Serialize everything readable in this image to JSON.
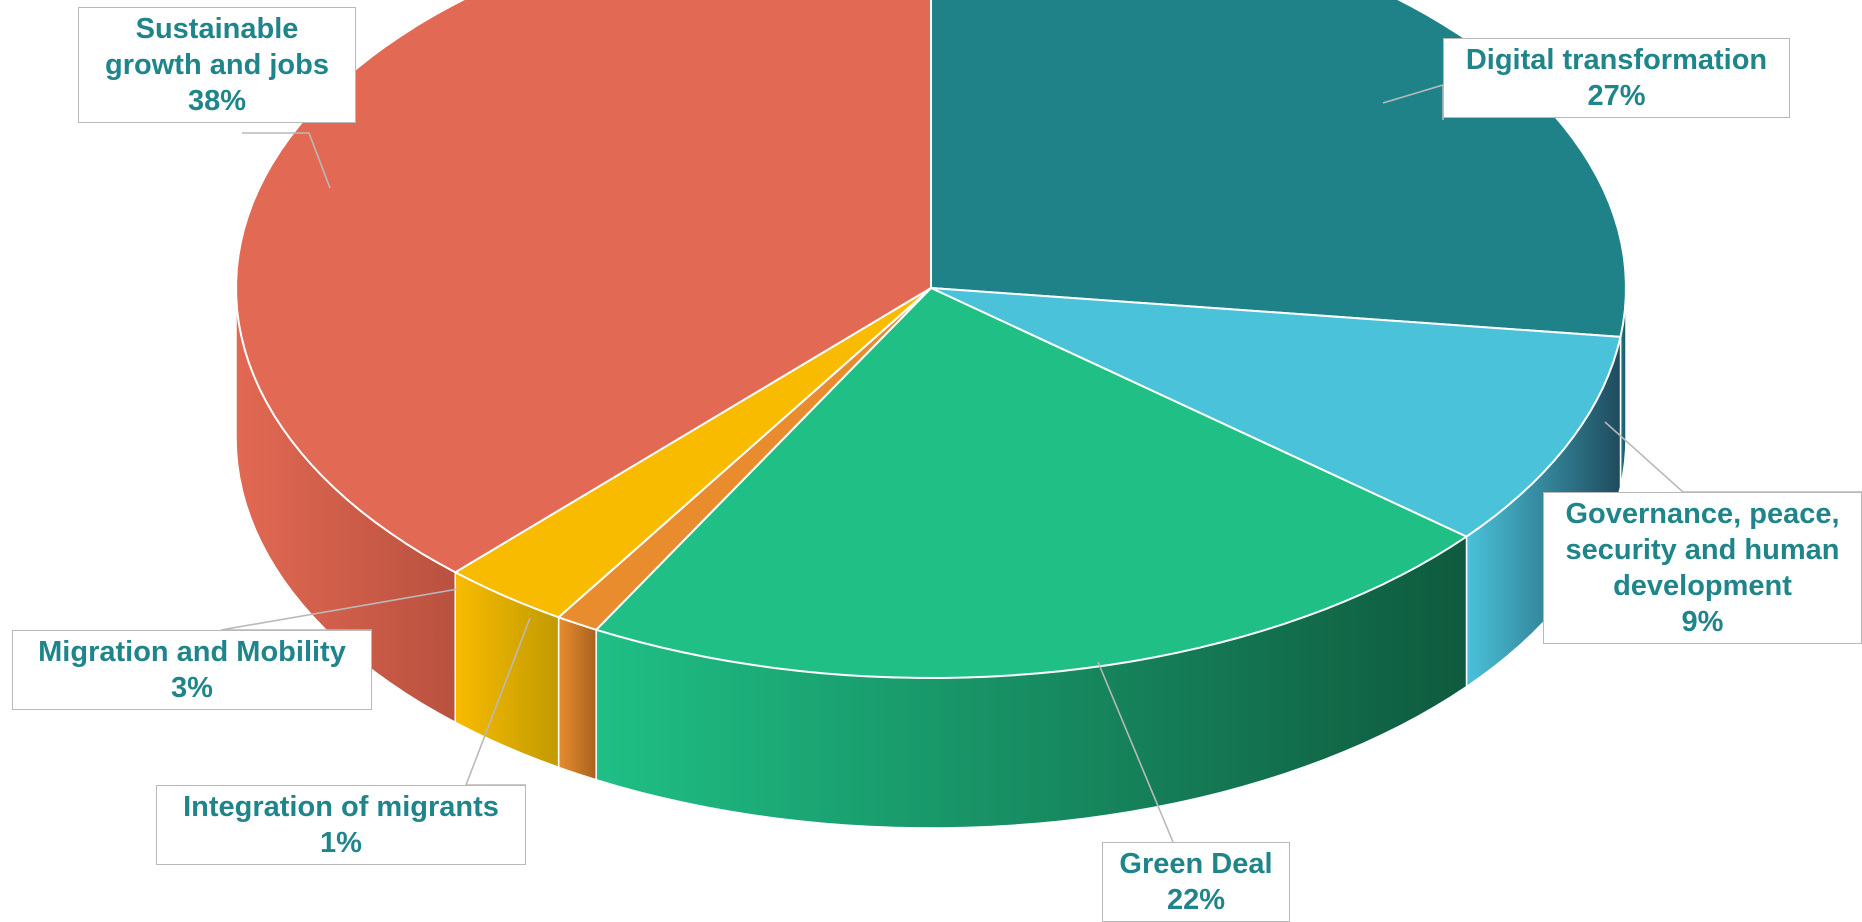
{
  "chart_data": {
    "type": "pie",
    "style": "3d-exploded-perspective",
    "start_angle": "12 o'clock, clockwise",
    "slices": [
      {
        "label": "Digital transformation",
        "pct_label": "27%",
        "value": 27,
        "color": "#1e8288",
        "side_color": "#1b4f5f"
      },
      {
        "label": "Governance, peace, security and human development",
        "label_lines": [
          "Governance, peace,",
          "security and human",
          "development"
        ],
        "pct_label": "9%",
        "value": 9,
        "color": "#4ac2da",
        "side_color": "#1f4b5d"
      },
      {
        "label": "Green Deal",
        "pct_label": "22%",
        "value": 22,
        "color": "#1fbf86",
        "side_color": "#0f5a3e"
      },
      {
        "label": "Integration of migrants",
        "pct_label": "1%",
        "value": 1,
        "color": "#e88c2e",
        "side_color": "#a8621e"
      },
      {
        "label": "Migration and Mobility",
        "pct_label": "3%",
        "value": 3,
        "color": "#f8bb00",
        "side_color": "#c29a00"
      },
      {
        "label": "Sustainable growth and jobs",
        "label_lines": [
          "Sustainable",
          "growth and jobs"
        ],
        "pct_label": "38%",
        "value": 38,
        "color": "#e26953",
        "side_color": "#b9513f"
      }
    ],
    "legend": "none",
    "data_labels": "callouts with leader lines"
  }
}
